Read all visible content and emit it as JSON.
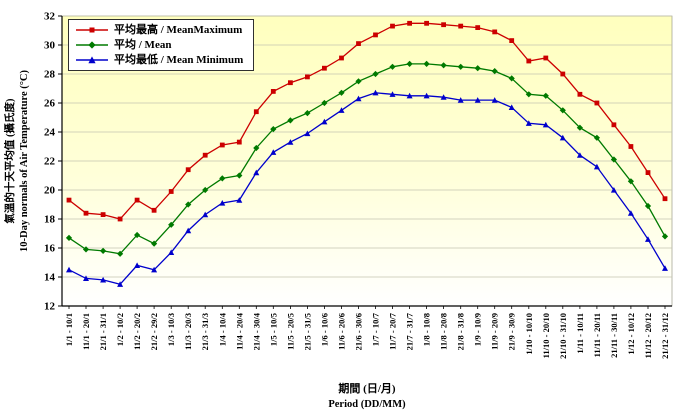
{
  "chart_data": {
    "type": "line",
    "title": "",
    "categories": [
      "1/1 - 10/1",
      "11/1 - 20/1",
      "21/1 - 31/1",
      "1/2 - 10/2",
      "11/2 - 20/2",
      "21/2 - 29/2",
      "1/3 - 10/3",
      "11/3 - 20/3",
      "21/3 - 31/3",
      "1/4 - 10/4",
      "11/4 - 20/4",
      "21/4 - 30/4",
      "1/5 - 10/5",
      "11/5 - 20/5",
      "21/5 - 31/5",
      "1/6 - 10/6",
      "11/6 - 20/6",
      "21/6 - 30/6",
      "1/7 - 10/7",
      "11/7 - 20/7",
      "21/7 - 31/7",
      "1/8 - 10/8",
      "11/8 - 20/8",
      "21/8 - 31/8",
      "1/9 - 10/9",
      "11/9 - 20/9",
      "21/9 - 30/9",
      "1/10 - 10/10",
      "11/10 - 20/10",
      "21/10 - 31/10",
      "1/11 - 10/11",
      "11/11 - 20/11",
      "21/11 - 30/11",
      "1/12 - 10/12",
      "11/12 - 20/12",
      "21/12 - 31/12"
    ],
    "series": [
      {
        "name": "平均最高 / MeanMaximum",
        "color": "#cc0000",
        "marker": "square",
        "values": [
          19.3,
          18.4,
          18.3,
          18.0,
          19.3,
          18.6,
          19.9,
          21.4,
          22.4,
          23.1,
          23.3,
          25.4,
          26.8,
          27.4,
          27.8,
          28.4,
          29.1,
          30.1,
          30.7,
          31.3,
          31.5,
          31.5,
          31.4,
          31.3,
          31.2,
          30.9,
          30.3,
          28.9,
          29.1,
          28.0,
          26.6,
          26.0,
          24.5,
          23.0,
          21.2,
          19.4
        ]
      },
      {
        "name": "平均 / Mean",
        "color": "#007a00",
        "marker": "diamond",
        "values": [
          16.7,
          15.9,
          15.8,
          15.6,
          16.9,
          16.3,
          17.6,
          19.0,
          20.0,
          20.8,
          21.0,
          22.9,
          24.2,
          24.8,
          25.3,
          26.0,
          26.7,
          27.5,
          28.0,
          28.5,
          28.7,
          28.7,
          28.6,
          28.5,
          28.4,
          28.2,
          27.7,
          26.6,
          26.5,
          25.5,
          24.3,
          23.6,
          22.1,
          20.6,
          18.9,
          16.8
        ]
      },
      {
        "name": "平均最低 / Mean Minimum",
        "color": "#0000cc",
        "marker": "triangle",
        "values": [
          14.5,
          13.9,
          13.8,
          13.5,
          14.8,
          14.5,
          15.7,
          17.2,
          18.3,
          19.1,
          19.3,
          21.2,
          22.6,
          23.3,
          23.9,
          24.7,
          25.5,
          26.3,
          26.7,
          26.6,
          26.5,
          26.5,
          26.4,
          26.2,
          26.2,
          26.2,
          25.7,
          24.6,
          24.5,
          23.6,
          22.4,
          21.6,
          20.0,
          18.4,
          16.6,
          14.6
        ]
      }
    ],
    "xlabel_line1": "期間 (日/月)",
    "xlabel_line2": "Period (DD/MM)",
    "ylabel_line1": "氣溫的十天平均值 (攝氏度)",
    "ylabel_line2": "10-Day normals of Air Temperature (°C)",
    "ylim": [
      12,
      32
    ],
    "yticks": [
      12,
      14,
      16,
      18,
      20,
      22,
      24,
      26,
      28,
      30,
      32
    ],
    "grid": "horizontal-on",
    "legend_position": "top-left",
    "plot_bg_top": "#ffffbe",
    "plot_bg_mid": "#ffffd9",
    "plot_bg_bottom": "#ffffff",
    "grid_color": "#c4c4b0",
    "axis_color": "#000000"
  }
}
